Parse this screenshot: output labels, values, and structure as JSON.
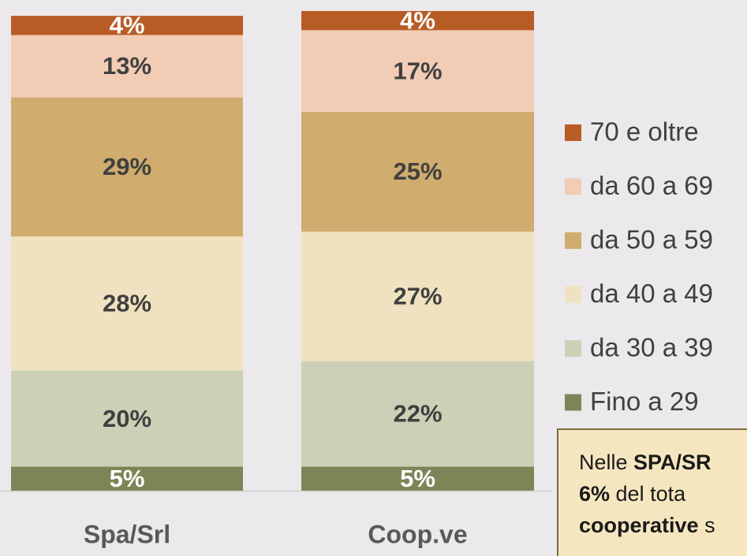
{
  "chart_data": {
    "type": "stacked_bar",
    "categories": [
      "Spa/Srl",
      "Coop.ve"
    ],
    "series": [
      {
        "name": "Fino a 29",
        "color": "#7f8457",
        "values": [
          5,
          5
        ],
        "value_labels": [
          "5%",
          "5%"
        ]
      },
      {
        "name": "da 30 a 39",
        "color": "#ccd0b6",
        "values": [
          20,
          22
        ],
        "value_labels": [
          "20%",
          "22%"
        ]
      },
      {
        "name": "da 40 a 49",
        "color": "#f0e2c0",
        "values": [
          28,
          27
        ],
        "value_labels": [
          "28%",
          "27%"
        ]
      },
      {
        "name": "da 50 a 59",
        "color": "#d0ac6e",
        "values": [
          29,
          25
        ],
        "value_labels": [
          "29%",
          "25%"
        ]
      },
      {
        "name": "da 60 a 69",
        "color": "#f2ccb4",
        "values": [
          13,
          17
        ],
        "value_labels": [
          "13%",
          "17%"
        ]
      },
      {
        "name": "70 e oltre",
        "color": "#b85c25",
        "values": [
          4,
          4
        ],
        "value_labels": [
          "4%",
          "4%"
        ]
      }
    ],
    "ylim": [
      0,
      100
    ],
    "annotation": [
      [
        {
          "text": "Nelle ",
          "bold": false
        },
        {
          "text": "SPA/SR",
          "bold": true
        }
      ],
      [
        {
          "text": "6%",
          "bold": true
        },
        {
          "text": " del tota",
          "bold": false
        }
      ],
      [
        {
          "text": "cooperative",
          "bold": true
        },
        {
          "text": " s",
          "bold": false
        }
      ]
    ]
  }
}
